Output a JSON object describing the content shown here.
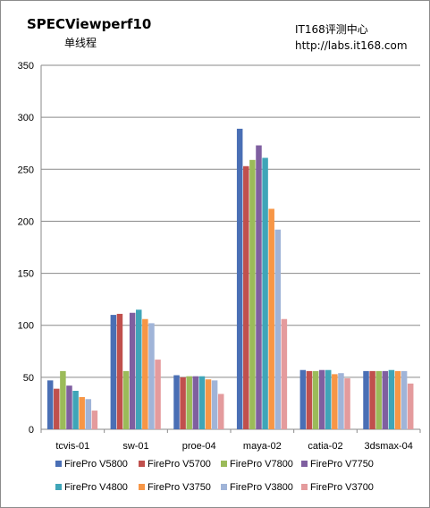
{
  "watermark": {
    "line1": "IT168评测中心",
    "line2": "http://labs.it168.com"
  },
  "chart_data": {
    "type": "bar",
    "title": "SPECViewperf10",
    "subtitle": "单线程",
    "categories": [
      "tcvis-01",
      "sw-01",
      "proe-04",
      "maya-02",
      "catia-02",
      "3dsmax-04"
    ],
    "ylim": [
      0,
      350
    ],
    "yticks": [
      0,
      50,
      100,
      150,
      200,
      250,
      300,
      350
    ],
    "grid": true,
    "legend_position": "bottom",
    "series": [
      {
        "name": "FirePro V5800",
        "color": "#4a6fb5",
        "values": [
          47,
          110,
          52,
          289,
          57,
          56
        ]
      },
      {
        "name": "FirePro V5700",
        "color": "#c0504d",
        "values": [
          39,
          111,
          50,
          253,
          56,
          56
        ]
      },
      {
        "name": "FirePro V7800",
        "color": "#9bbb59",
        "values": [
          56,
          56,
          51,
          259,
          56,
          56
        ]
      },
      {
        "name": "FirePro V7750",
        "color": "#7f5fa0",
        "values": [
          42,
          112,
          51,
          273,
          57,
          56
        ]
      },
      {
        "name": "FirePro V4800",
        "color": "#3fa5b8",
        "values": [
          37,
          115,
          51,
          261,
          57,
          57
        ]
      },
      {
        "name": "FirePro V3750",
        "color": "#f79646",
        "values": [
          31,
          106,
          48,
          212,
          53,
          56
        ]
      },
      {
        "name": "FirePro V3800",
        "color": "#a0b4d8",
        "values": [
          29,
          102,
          47,
          192,
          54,
          56
        ]
      },
      {
        "name": "FirePro V3700",
        "color": "#e49b9d",
        "values": [
          18,
          67,
          34,
          106,
          49,
          44
        ]
      }
    ]
  }
}
